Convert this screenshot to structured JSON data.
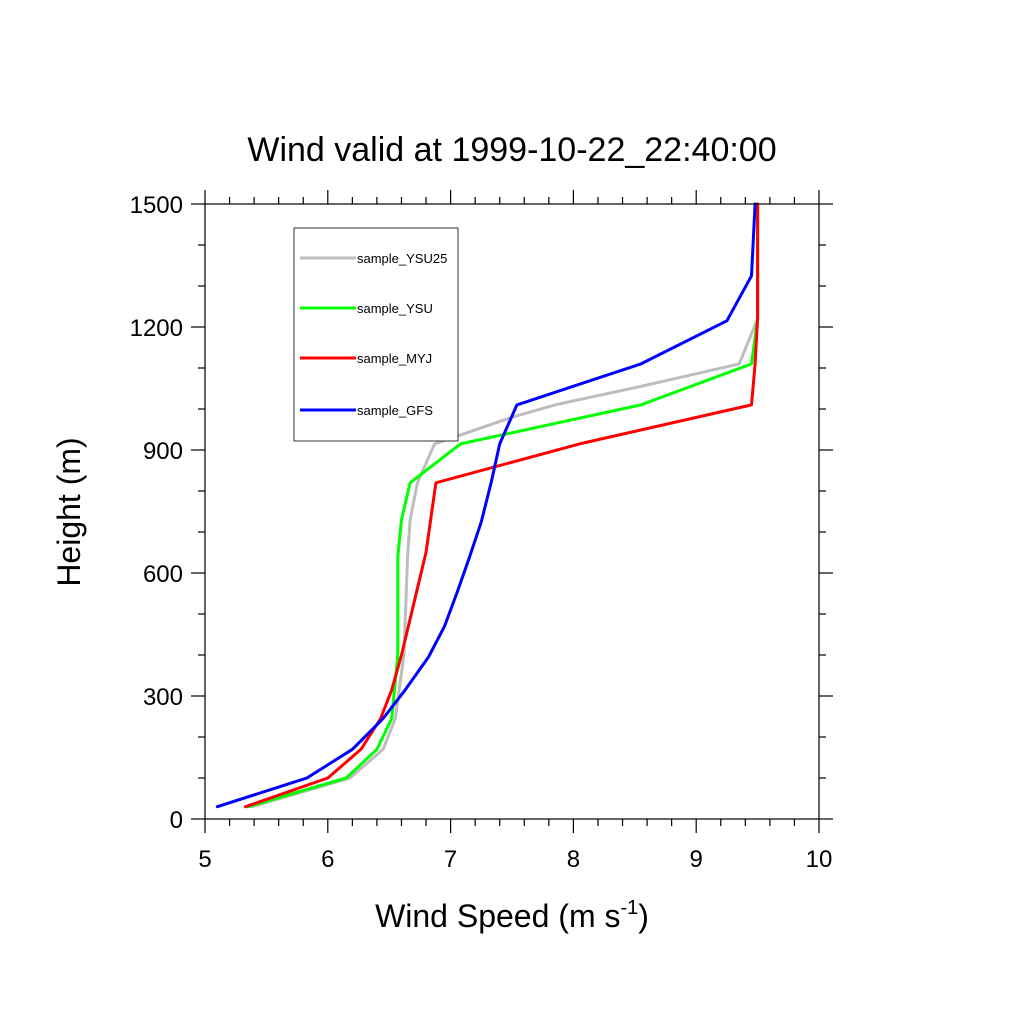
{
  "chart_data": {
    "type": "line",
    "title": "Wind valid at 1999-10-22_22:40:00",
    "xlabel": "Wind Speed (m s",
    "xlabel_superscript": "-1",
    "xlabel_suffix": ")",
    "ylabel": "Height (m)",
    "xlim": [
      5,
      10
    ],
    "ylim": [
      0,
      1500
    ],
    "x_major_ticks": [
      5,
      6,
      7,
      8,
      9,
      10
    ],
    "y_major_ticks": [
      0,
      300,
      600,
      900,
      1200,
      1500
    ],
    "x_tick_labels": [
      "5",
      "6",
      "7",
      "8",
      "9",
      "10"
    ],
    "y_tick_labels": [
      "0",
      "300",
      "600",
      "900",
      "1200",
      "1500"
    ],
    "grid": false,
    "legend_position": "top-left",
    "series": [
      {
        "name": "sample_YSU25",
        "color": "#bdbdbd",
        "points": [
          [
            5.38,
            30
          ],
          [
            6.18,
            100
          ],
          [
            6.45,
            170
          ],
          [
            6.55,
            245
          ],
          [
            6.62,
            400
          ],
          [
            6.65,
            640
          ],
          [
            6.67,
            730
          ],
          [
            6.73,
            820
          ],
          [
            6.87,
            915
          ],
          [
            7.5,
            980
          ],
          [
            7.85,
            1010
          ],
          [
            8.55,
            1055
          ],
          [
            9.35,
            1110
          ],
          [
            9.5,
            1220
          ],
          [
            9.5,
            1500
          ]
        ]
      },
      {
        "name": "sample_YSU",
        "color": "#00ff00",
        "points": [
          [
            5.35,
            30
          ],
          [
            6.15,
            100
          ],
          [
            6.4,
            170
          ],
          [
            6.52,
            245
          ],
          [
            6.57,
            400
          ],
          [
            6.57,
            640
          ],
          [
            6.6,
            730
          ],
          [
            6.67,
            820
          ],
          [
            7.08,
            915
          ],
          [
            8.55,
            1010
          ],
          [
            9.45,
            1110
          ],
          [
            9.5,
            1220
          ],
          [
            9.5,
            1500
          ]
        ]
      },
      {
        "name": "sample_MYJ",
        "color": "#ff0000",
        "points": [
          [
            5.33,
            30
          ],
          [
            6.0,
            100
          ],
          [
            6.27,
            170
          ],
          [
            6.43,
            245
          ],
          [
            6.52,
            315
          ],
          [
            6.6,
            400
          ],
          [
            6.72,
            550
          ],
          [
            6.8,
            650
          ],
          [
            6.88,
            820
          ],
          [
            8.05,
            915
          ],
          [
            9.45,
            1010
          ],
          [
            9.48,
            1110
          ],
          [
            9.5,
            1220
          ],
          [
            9.5,
            1500
          ]
        ]
      },
      {
        "name": "sample_GFS",
        "color": "#0000ff",
        "points": [
          [
            5.1,
            30
          ],
          [
            5.83,
            100
          ],
          [
            6.2,
            170
          ],
          [
            6.45,
            245
          ],
          [
            6.63,
            315
          ],
          [
            6.82,
            395
          ],
          [
            6.95,
            470
          ],
          [
            7.05,
            550
          ],
          [
            7.15,
            635
          ],
          [
            7.25,
            725
          ],
          [
            7.33,
            820
          ],
          [
            7.4,
            915
          ],
          [
            7.54,
            1010
          ],
          [
            8.55,
            1110
          ],
          [
            9.25,
            1215
          ],
          [
            9.45,
            1325
          ],
          [
            9.48,
            1500
          ]
        ]
      }
    ]
  }
}
